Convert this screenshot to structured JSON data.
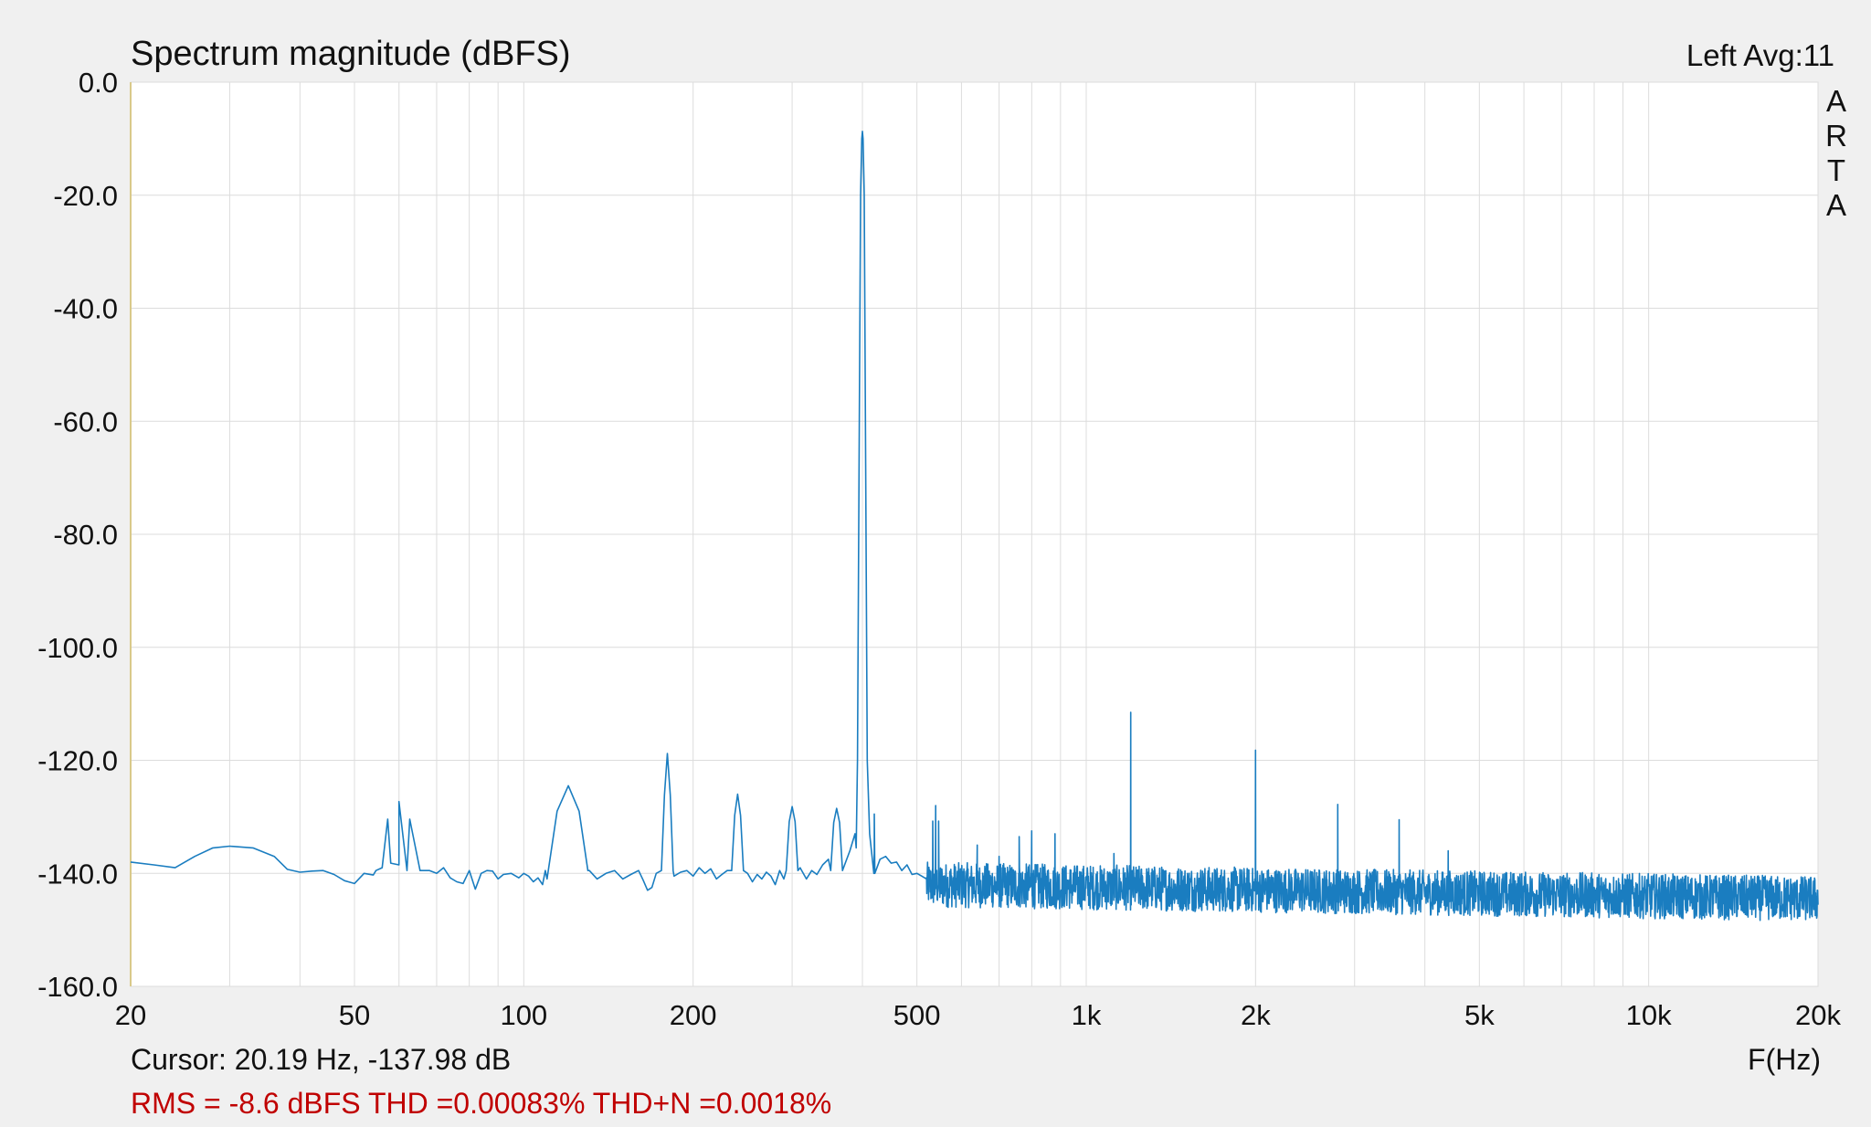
{
  "header": {
    "title": "Spectrum magnitude (dBFS)",
    "channel_info": "Left  Avg:11",
    "brand_letters": [
      "A",
      "R",
      "T",
      "A"
    ]
  },
  "footer": {
    "cursor_readout": "Cursor: 20.19 Hz, -137.98 dB",
    "x_unit": "F(Hz)",
    "stats": "RMS =   -8.6 dBFS THD =0.00083% THD+N =0.0018%"
  },
  "colors": {
    "trace": "#1a7dc0",
    "grid": "#dcdcdc",
    "background": "#f0f0f0",
    "plot_background": "#ffffff",
    "stats_text": "#c00000",
    "left_axis_line": "#d9c98a"
  },
  "chart_data": {
    "type": "line",
    "title": "Spectrum magnitude (dBFS)",
    "xlabel": "F(Hz)",
    "ylabel": "",
    "x_scale": "log",
    "xlim": [
      20,
      20000
    ],
    "ylim": [
      -160,
      0
    ],
    "grid": true,
    "x_ticks": [
      {
        "value": 20,
        "label": "20"
      },
      {
        "value": 50,
        "label": "50"
      },
      {
        "value": 100,
        "label": "100"
      },
      {
        "value": 200,
        "label": "200"
      },
      {
        "value": 500,
        "label": "500"
      },
      {
        "value": 1000,
        "label": "1k"
      },
      {
        "value": 2000,
        "label": "2k"
      },
      {
        "value": 5000,
        "label": "5k"
      },
      {
        "value": 10000,
        "label": "10k"
      },
      {
        "value": 20000,
        "label": "20k"
      }
    ],
    "y_ticks": [
      {
        "value": 0,
        "label": "0.0"
      },
      {
        "value": -20,
        "label": "-20.0"
      },
      {
        "value": -40,
        "label": "-40.0"
      },
      {
        "value": -60,
        "label": "-60.0"
      },
      {
        "value": -80,
        "label": "-80.0"
      },
      {
        "value": -100,
        "label": "-100.0"
      },
      {
        "value": -120,
        "label": "-120.0"
      },
      {
        "value": -140,
        "label": "-140.0"
      },
      {
        "value": -160,
        "label": "-160.0"
      }
    ],
    "series": [
      {
        "noise_floor": [
          [
            20,
            -138
          ],
          [
            22,
            -138.5
          ],
          [
            24,
            -139
          ],
          [
            26,
            -137
          ],
          [
            28,
            -135.5
          ],
          [
            30,
            -135.2
          ],
          [
            33,
            -135.5
          ],
          [
            36,
            -137
          ],
          [
            38,
            -139.3
          ],
          [
            40,
            -139.8
          ],
          [
            42,
            -139.6
          ],
          [
            44,
            -139.5
          ],
          [
            46,
            -140.2
          ],
          [
            48,
            -141.3
          ],
          [
            50,
            -141.8
          ],
          [
            52,
            -140
          ],
          [
            54,
            -140.3
          ],
          [
            56,
            -139
          ],
          [
            58,
            -138.2
          ],
          [
            60,
            -138.5
          ],
          [
            62,
            -139.5
          ],
          [
            68,
            -139.5
          ],
          [
            70,
            -140
          ],
          [
            72,
            -139
          ],
          [
            74,
            -140.8
          ],
          [
            76,
            -141.5
          ],
          [
            78,
            -141.8
          ],
          [
            80,
            -139.5
          ],
          [
            82,
            -142.8
          ],
          [
            84,
            -140
          ],
          [
            86,
            -139.5
          ],
          [
            88,
            -139.6
          ],
          [
            90,
            -141
          ],
          [
            92,
            -140.2
          ],
          [
            95,
            -140
          ],
          [
            98,
            -140.8
          ],
          [
            100,
            -140
          ],
          [
            102,
            -140.5
          ],
          [
            104,
            -141.5
          ],
          [
            106,
            -140.8
          ],
          [
            108,
            -142
          ],
          [
            110,
            -141
          ],
          [
            130,
            -139.5
          ],
          [
            135,
            -141
          ],
          [
            140,
            -140
          ],
          [
            145,
            -139.5
          ],
          [
            150,
            -141
          ],
          [
            155,
            -140.2
          ],
          [
            160,
            -139.5
          ],
          [
            163,
            -141.2
          ],
          [
            166,
            -143
          ],
          [
            169,
            -142.5
          ],
          [
            172,
            -140
          ],
          [
            185,
            -140.5
          ],
          [
            190,
            -139.8
          ],
          [
            195,
            -139.5
          ],
          [
            200,
            -140.5
          ],
          [
            205,
            -139
          ],
          [
            210,
            -140
          ],
          [
            215,
            -139.2
          ],
          [
            220,
            -141
          ],
          [
            225,
            -140.2
          ],
          [
            230,
            -139.5
          ],
          [
            250,
            -140
          ],
          [
            255,
            -141.5
          ],
          [
            260,
            -140.2
          ],
          [
            265,
            -141
          ],
          [
            270,
            -139.8
          ],
          [
            275,
            -140.5
          ],
          [
            280,
            -142
          ],
          [
            285,
            -139.5
          ],
          [
            290,
            -141
          ],
          [
            310,
            -139
          ],
          [
            318,
            -141
          ],
          [
            325,
            -139.5
          ],
          [
            332,
            -140.2
          ],
          [
            340,
            -138.5
          ],
          [
            348,
            -137.5
          ],
          [
            380,
            -136
          ],
          [
            390,
            -135.5
          ],
          [
            420,
            -136
          ],
          [
            430,
            -137.5
          ],
          [
            440,
            -137
          ],
          [
            450,
            -138.2
          ],
          [
            460,
            -138
          ],
          [
            470,
            -139.5
          ],
          [
            480,
            -138.5
          ],
          [
            490,
            -140.2
          ],
          [
            500,
            -140
          ],
          [
            510,
            -140.5
          ],
          [
            520,
            -141
          ]
        ],
        "peaks": [
          {
            "frequency": 60,
            "level": -127.3
          },
          {
            "frequency": 120,
            "level": -124.5
          },
          {
            "frequency": 180,
            "level": -118.8
          },
          {
            "frequency": 240,
            "level": -126
          },
          {
            "frequency": 300,
            "level": -128.2
          },
          {
            "frequency": 360,
            "level": -128.5
          },
          {
            "frequency": 400,
            "level": -8.7
          },
          {
            "frequency": 540,
            "level": -128
          },
          {
            "frequency": 1200,
            "level": -111.5
          },
          {
            "frequency": 2000,
            "level": -118.2
          },
          {
            "frequency": 2800,
            "level": -127.8
          },
          {
            "frequency": 3600,
            "level": -130.5
          },
          {
            "frequency": 4400,
            "level": -136
          }
        ],
        "minor_spikes": [
          {
            "frequency": 420,
            "level": -129.5
          },
          {
            "frequency": 640,
            "level": -135
          },
          {
            "frequency": 700,
            "level": -137
          },
          {
            "frequency": 760,
            "level": -133.5
          },
          {
            "frequency": 800,
            "level": -132.5
          },
          {
            "frequency": 880,
            "level": -133
          },
          {
            "frequency": 1120,
            "level": -136.5
          }
        ],
        "high_frequency_noise": {
          "from": 520,
          "to": 20000,
          "mean_start": -142,
          "mean_end": -144.5,
          "spread": 5
        }
      }
    ]
  }
}
